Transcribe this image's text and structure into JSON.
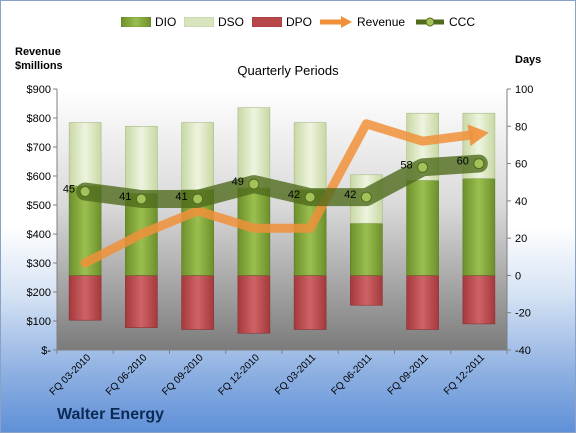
{
  "company": "Walter Energy",
  "chart_data": {
    "type": "bar",
    "title": "Quarterly Periods",
    "left_axis_title": [
      "Revenue",
      "$millions"
    ],
    "right_axis_title": "Days",
    "categories": [
      "FQ 03-2010",
      "FQ 06-2010",
      "FQ 09-2010",
      "FQ 12-2010",
      "FQ 03-2011",
      "FQ 06-2011",
      "FQ 09-2011",
      "FQ 12-2011"
    ],
    "left_axis": {
      "min": 0,
      "max": 900,
      "step": 100,
      "tick_labels": [
        "$-",
        "$100",
        "$200",
        "$300",
        "$400",
        "$500",
        "$600",
        "$700",
        "$800",
        "$900"
      ]
    },
    "right_axis": {
      "min": -40,
      "max": 100,
      "step": 20,
      "tick_labels": [
        "-40",
        "-20",
        "0",
        "20",
        "40",
        "60",
        "80",
        "100"
      ]
    },
    "series": [
      {
        "name": "DIO",
        "axis": "right",
        "kind": "stacked-bar",
        "values": [
          48,
          44,
          46,
          47,
          46,
          28,
          51,
          52
        ],
        "color": "#7ea23a"
      },
      {
        "name": "DSO",
        "axis": "right",
        "kind": "stacked-bar",
        "values": [
          34,
          36,
          36,
          43,
          36,
          26,
          36,
          35
        ],
        "color": "#d7e4bd"
      },
      {
        "name": "DPO",
        "axis": "right",
        "kind": "negative-bar",
        "values": [
          -24,
          -28,
          -29,
          -31,
          -29,
          -16,
          -29,
          -26
        ],
        "color": "#b8474a"
      },
      {
        "name": "Revenue",
        "axis": "left",
        "kind": "line",
        "values": [
          300,
          400,
          480,
          420,
          420,
          780,
          720,
          745
        ],
        "color": "#f0903a"
      },
      {
        "name": "CCC",
        "axis": "right",
        "kind": "line-labeled",
        "values": [
          45,
          41,
          41,
          49,
          42,
          42,
          58,
          60
        ],
        "color": "#5a7a20"
      }
    ],
    "legend_position": "top",
    "grid": false
  }
}
